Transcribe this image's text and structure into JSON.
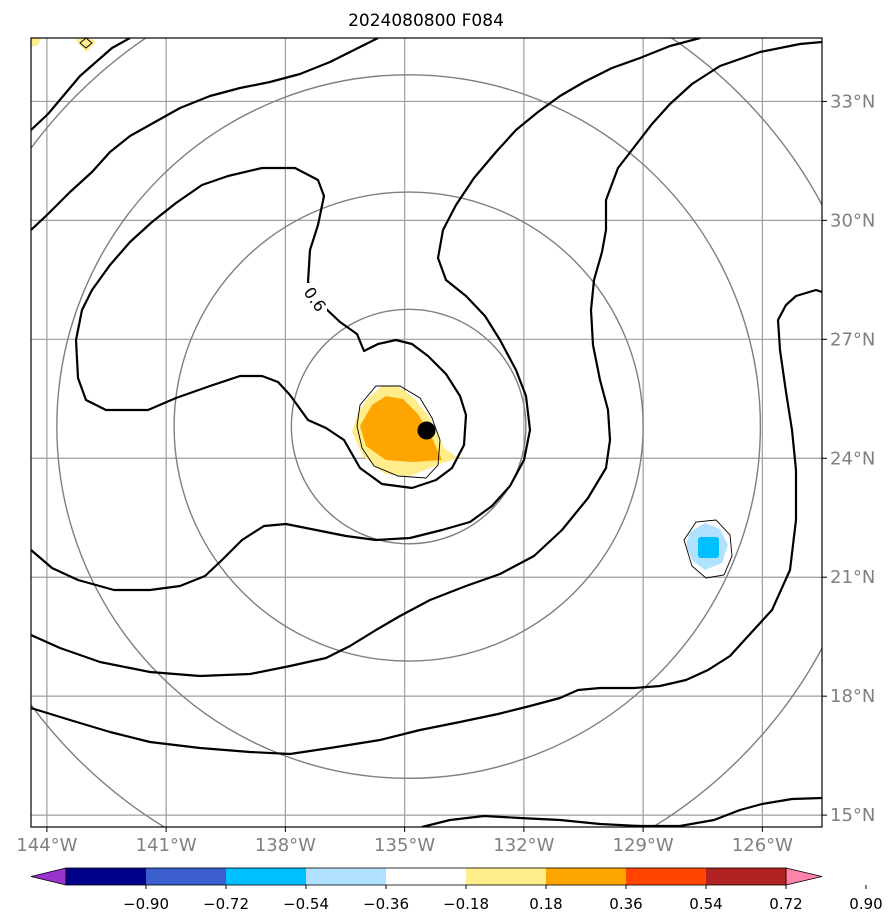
{
  "chart_data": {
    "type": "contour-map",
    "title": "2024080800 F084",
    "lon_range": [
      -144.4,
      -124.5
    ],
    "lat_range": [
      14.7,
      34.6
    ],
    "x_ticks": [
      {
        "value": -144,
        "label": "144°W"
      },
      {
        "value": -141,
        "label": "141°W"
      },
      {
        "value": -138,
        "label": "138°W"
      },
      {
        "value": -135,
        "label": "135°W"
      },
      {
        "value": -132,
        "label": "132°W"
      },
      {
        "value": -129,
        "label": "129°W"
      },
      {
        "value": -126,
        "label": "126°W"
      }
    ],
    "y_ticks": [
      {
        "value": 15,
        "label": "15°N"
      },
      {
        "value": 18,
        "label": "18°N"
      },
      {
        "value": 21,
        "label": "21°N"
      },
      {
        "value": 24,
        "label": "24°N"
      },
      {
        "value": 27,
        "label": "27°N"
      },
      {
        "value": 30,
        "label": "30°N"
      },
      {
        "value": 33,
        "label": "33°N"
      }
    ],
    "gridlines": true,
    "storm_center": {
      "lon": -134.45,
      "lat": 24.7
    },
    "range_rings": {
      "center": {
        "lon": -134.9,
        "lat": 24.8
      },
      "radii_deg": [
        2.95,
        5.9,
        8.85,
        11.8
      ]
    },
    "contour_label": "0.6",
    "colorbar": {
      "orientation": "horizontal",
      "extend": "both",
      "ticks": [
        "−0.90",
        "−0.72",
        "−0.54",
        "−0.36",
        "−0.18",
        "0.18",
        "0.36",
        "0.54",
        "0.72",
        "0.90"
      ],
      "colors": [
        "#9a32cd",
        "#00008b",
        "#3a5fcd",
        "#00bfff",
        "#b0e2ff",
        "#ffffff",
        "#ffec8b",
        "#ffa500",
        "#ff4500",
        "#b22222",
        "#ff82ab"
      ]
    }
  }
}
